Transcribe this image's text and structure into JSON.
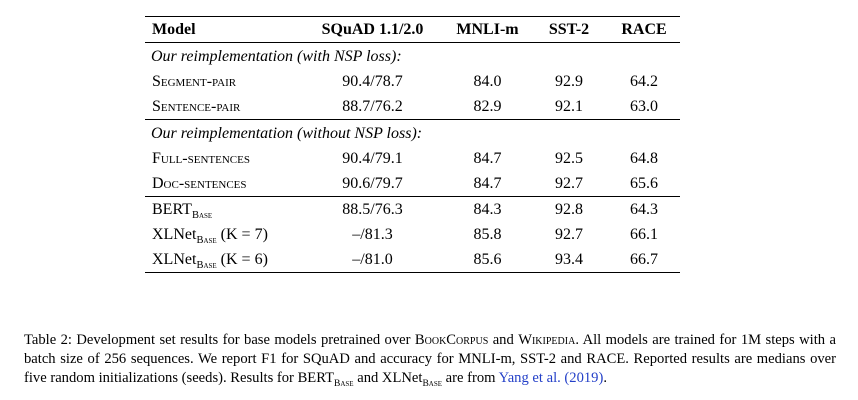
{
  "accent_colors": {
    "link_blue": "#2440c8"
  },
  "table": {
    "columns": [
      "Model",
      "SQuAD 1.1/2.0",
      "MNLI-m",
      "SST-2",
      "RACE"
    ],
    "sections": [
      {
        "header": "Our reimplementation (with NSP loss):",
        "rows": [
          {
            "name": "Segment-pair",
            "name_style": "smallcaps",
            "sub": "",
            "suffix": "",
            "values": [
              "90.4/78.7",
              "84.0",
              "92.9",
              "64.2"
            ]
          },
          {
            "name": "Sentence-pair",
            "name_style": "smallcaps",
            "sub": "",
            "suffix": "",
            "values": [
              "88.7/76.2",
              "82.9",
              "92.1",
              "63.0"
            ]
          }
        ]
      },
      {
        "header": "Our reimplementation (without NSP loss):",
        "rows": [
          {
            "name": "Full-sentences",
            "name_style": "smallcaps",
            "sub": "",
            "suffix": "",
            "values": [
              "90.4/79.1",
              "84.7",
              "92.5",
              "64.8"
            ]
          },
          {
            "name": "Doc-sentences",
            "name_style": "smallcaps",
            "sub": "",
            "suffix": "",
            "values": [
              "90.6/79.7",
              "84.7",
              "92.7",
              "65.6"
            ]
          }
        ]
      },
      {
        "header": "",
        "rows": [
          {
            "name": "BERT",
            "name_style": "normal",
            "sub": "Base",
            "suffix": "",
            "values": [
              "88.5/76.3",
              "84.3",
              "92.8",
              "64.3"
            ]
          },
          {
            "name": "XLNet",
            "name_style": "normal",
            "sub": "Base",
            "suffix": " (K = 7)",
            "values": [
              "–/81.3",
              "85.8",
              "92.7",
              "66.1"
            ]
          },
          {
            "name": "XLNet",
            "name_style": "normal",
            "sub": "Base",
            "suffix": " (K = 6)",
            "values": [
              "–/81.0",
              "85.6",
              "93.4",
              "66.7"
            ]
          }
        ]
      }
    ]
  },
  "caption": {
    "segments": [
      {
        "text": "Table 2: Development set results for base models pretrained over ",
        "style": "normal"
      },
      {
        "text": "BookCorpus",
        "style": "smallcaps"
      },
      {
        "text": " and ",
        "style": "normal"
      },
      {
        "text": "Wikipedia",
        "style": "smallcaps"
      },
      {
        "text": ". All models are trained for 1M steps with a batch size of 256 sequences. We report F1 for SQuAD and accuracy for MNLI-m, SST-2 and RACE. Reported results are medians over five random initializations (seeds). Results for BERT",
        "style": "normal"
      },
      {
        "text": "Base",
        "style": "sub"
      },
      {
        "text": " and XLNet",
        "style": "normal"
      },
      {
        "text": "Base",
        "style": "sub"
      },
      {
        "text": " are from ",
        "style": "normal"
      },
      {
        "text": "Yang et al. (2019)",
        "style": "link"
      },
      {
        "text": ".",
        "style": "normal"
      }
    ]
  }
}
